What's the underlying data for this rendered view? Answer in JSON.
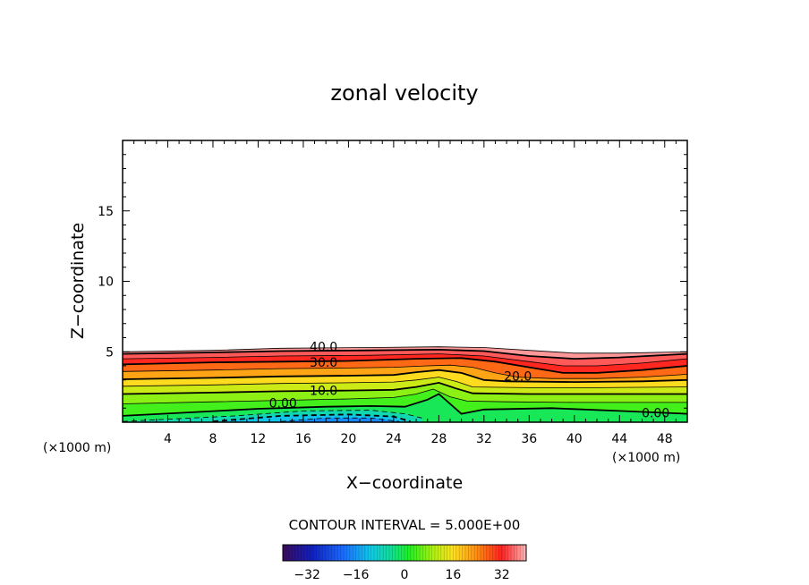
{
  "chart_data": {
    "type": "contour",
    "title": "zonal velocity",
    "xlabel": "X−coordinate",
    "ylabel": "Z−coordinate",
    "x_unit_label": "(×1000 m)",
    "y_unit_label": "(×1000 m)",
    "xlim": [
      0,
      50
    ],
    "ylim": [
      0,
      20
    ],
    "x_ticks": [
      4,
      8,
      12,
      16,
      20,
      24,
      28,
      32,
      36,
      40,
      44,
      48
    ],
    "x_tick_labels": [
      "4",
      "8",
      "12",
      "16",
      "20",
      "24",
      "28",
      "32",
      "36",
      "40",
      "44",
      "48"
    ],
    "y_ticks": [
      5,
      10,
      15
    ],
    "y_tick_labels": [
      "5",
      "10",
      "15"
    ],
    "contour_interval_text": "CONTOUR INTERVAL = 5.000E+00",
    "colorbar_range": [
      -40,
      40
    ],
    "colorbar_ticks": [
      -32,
      -16,
      0,
      16,
      32
    ],
    "colorbar_tick_labels": [
      "−32",
      "−16",
      "0",
      "16",
      "32"
    ],
    "contour_labels": [
      {
        "text": "40.0",
        "x": 17.8,
        "z": 5.3
      },
      {
        "text": "30.0",
        "x": 17.8,
        "z": 4.2
      },
      {
        "text": "20.0",
        "x": 35.0,
        "z": 3.2
      },
      {
        "text": "10.0",
        "x": 17.8,
        "z": 2.2
      },
      {
        "text": "0.00",
        "x": 14.2,
        "z": 1.3
      },
      {
        "text": "0.00",
        "x": 47.2,
        "z": 0.6
      }
    ],
    "contour_lines": [
      {
        "level": 45,
        "dashed": false,
        "points": [
          [
            0,
            5
          ],
          [
            8,
            5.1
          ],
          [
            14,
            5.25
          ],
          [
            22,
            5.3
          ],
          [
            28,
            5.35
          ],
          [
            32,
            5.3
          ],
          [
            36,
            5.1
          ],
          [
            40,
            4.9
          ],
          [
            44,
            4.9
          ],
          [
            50,
            5.0
          ]
        ]
      },
      {
        "level": 40,
        "dashed": false,
        "points": [
          [
            0,
            4.85
          ],
          [
            8,
            4.95
          ],
          [
            14,
            5.05
          ],
          [
            22,
            5.1
          ],
          [
            28,
            5.15
          ],
          [
            32,
            5.05
          ],
          [
            36,
            4.7
          ],
          [
            40,
            4.5
          ],
          [
            44,
            4.6
          ],
          [
            50,
            4.85
          ]
        ]
      },
      {
        "level": 35,
        "dashed": false,
        "points": [
          [
            0,
            4.5
          ],
          [
            8,
            4.6
          ],
          [
            14,
            4.7
          ],
          [
            22,
            4.75
          ],
          [
            28,
            4.85
          ],
          [
            32,
            4.7
          ],
          [
            36,
            4.3
          ],
          [
            39,
            4.0
          ],
          [
            42,
            4.0
          ],
          [
            46,
            4.2
          ],
          [
            50,
            4.5
          ]
        ]
      },
      {
        "level": 30,
        "dashed": false,
        "points": [
          [
            0,
            4.1
          ],
          [
            8,
            4.25
          ],
          [
            14,
            4.3
          ],
          [
            20,
            4.35
          ],
          [
            26,
            4.5
          ],
          [
            30,
            4.55
          ],
          [
            33,
            4.3
          ],
          [
            36,
            3.9
          ],
          [
            39,
            3.5
          ],
          [
            42,
            3.5
          ],
          [
            46,
            3.7
          ],
          [
            50,
            4.0
          ]
        ]
      },
      {
        "level": 25,
        "dashed": false,
        "points": [
          [
            0,
            3.6
          ],
          [
            8,
            3.7
          ],
          [
            14,
            3.8
          ],
          [
            20,
            3.85
          ],
          [
            24,
            3.9
          ],
          [
            27,
            4.0
          ],
          [
            29,
            4.05
          ],
          [
            31,
            3.9
          ],
          [
            33,
            3.5
          ],
          [
            35,
            3.2
          ],
          [
            38,
            3.1
          ],
          [
            42,
            3.1
          ],
          [
            46,
            3.2
          ],
          [
            50,
            3.4
          ]
        ]
      },
      {
        "level": 20,
        "dashed": false,
        "points": [
          [
            0,
            3.05
          ],
          [
            8,
            3.15
          ],
          [
            14,
            3.25
          ],
          [
            20,
            3.3
          ],
          [
            24,
            3.35
          ],
          [
            26,
            3.55
          ],
          [
            28,
            3.7
          ],
          [
            30,
            3.5
          ],
          [
            32,
            3.0
          ],
          [
            34,
            2.9
          ],
          [
            40,
            2.85
          ],
          [
            46,
            2.9
          ],
          [
            50,
            3.0
          ]
        ]
      },
      {
        "level": 15,
        "dashed": false,
        "points": [
          [
            0,
            2.55
          ],
          [
            8,
            2.65
          ],
          [
            14,
            2.75
          ],
          [
            20,
            2.8
          ],
          [
            24,
            2.85
          ],
          [
            26,
            3.0
          ],
          [
            28,
            3.2
          ],
          [
            29.5,
            2.9
          ],
          [
            31,
            2.5
          ],
          [
            36,
            2.45
          ],
          [
            42,
            2.45
          ],
          [
            50,
            2.5
          ]
        ]
      },
      {
        "level": 10,
        "dashed": false,
        "points": [
          [
            0,
            2.0
          ],
          [
            8,
            2.1
          ],
          [
            14,
            2.2
          ],
          [
            20,
            2.25
          ],
          [
            24,
            2.3
          ],
          [
            26,
            2.5
          ],
          [
            28,
            2.8
          ],
          [
            29.5,
            2.4
          ],
          [
            31,
            2.05
          ],
          [
            36,
            2.0
          ],
          [
            42,
            2.0
          ],
          [
            50,
            2.0
          ]
        ]
      },
      {
        "level": 5,
        "dashed": false,
        "points": [
          [
            0,
            1.3
          ],
          [
            8,
            1.45
          ],
          [
            14,
            1.55
          ],
          [
            20,
            1.65
          ],
          [
            24,
            1.75
          ],
          [
            26,
            2.0
          ],
          [
            27.5,
            2.35
          ],
          [
            29,
            1.8
          ],
          [
            30.5,
            1.5
          ],
          [
            34,
            1.45
          ],
          [
            40,
            1.4
          ],
          [
            50,
            1.4
          ]
        ]
      },
      {
        "level": 0,
        "dashed": false,
        "points": [
          [
            0,
            0.45
          ],
          [
            6,
            0.7
          ],
          [
            12,
            0.95
          ],
          [
            18,
            1.1
          ],
          [
            22,
            1.15
          ],
          [
            25,
            1.1
          ],
          [
            27,
            1.6
          ],
          [
            28,
            2.0
          ],
          [
            29,
            1.3
          ],
          [
            30,
            0.6
          ],
          [
            32,
            0.9
          ],
          [
            38,
            1.0
          ],
          [
            44,
            0.8
          ],
          [
            50,
            0.6
          ]
        ]
      },
      {
        "level": -5,
        "dashed": true,
        "points": [
          [
            0,
            0.05
          ],
          [
            10,
            0.45
          ],
          [
            16,
            0.8
          ],
          [
            22,
            0.85
          ],
          [
            25,
            0.6
          ],
          [
            26.5,
            0.3
          ]
        ]
      },
      {
        "level": -10,
        "dashed": true,
        "points": [
          [
            8,
            0.05
          ],
          [
            14,
            0.45
          ],
          [
            20,
            0.55
          ],
          [
            24,
            0.4
          ],
          [
            25.5,
            0.05
          ]
        ]
      },
      {
        "level": -15,
        "dashed": true,
        "points": [
          [
            14,
            0.05
          ],
          [
            18,
            0.3
          ],
          [
            22,
            0.3
          ],
          [
            24.5,
            0.05
          ]
        ]
      }
    ]
  }
}
